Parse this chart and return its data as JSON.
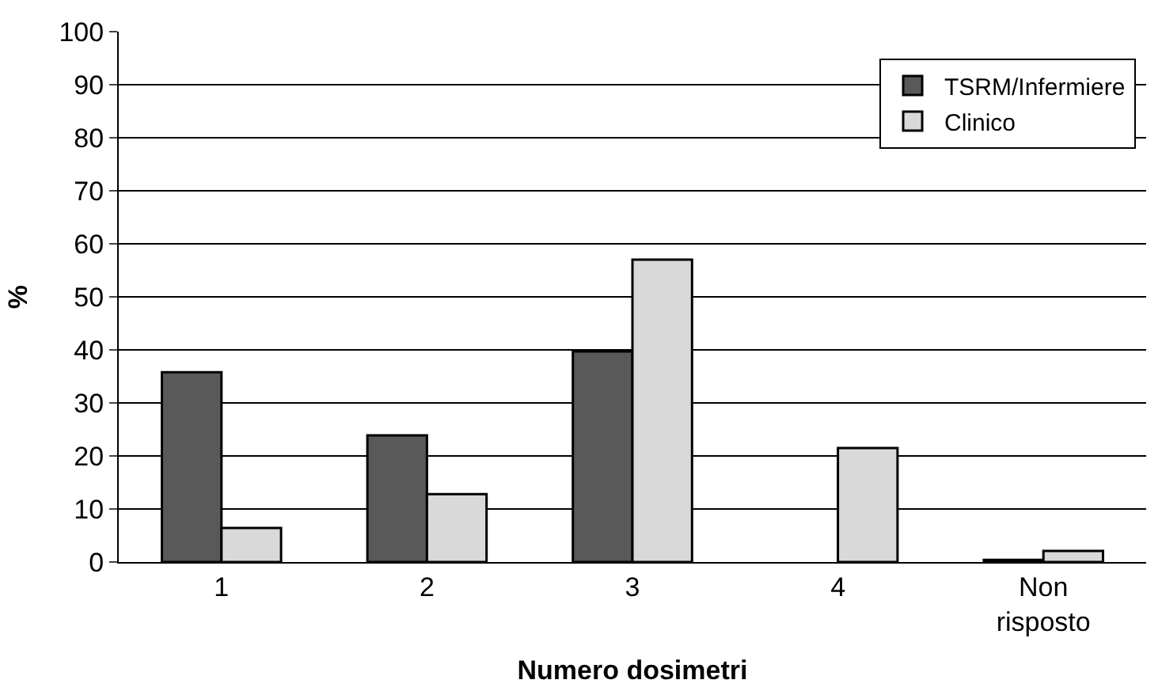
{
  "chart_data": {
    "type": "bar",
    "xlabel": "Numero dosimetri",
    "ylabel": "%",
    "categories": [
      "1",
      "2",
      "3",
      "4",
      "Non\nrisposto"
    ],
    "series": [
      {
        "name": "TSRM/Infermiere",
        "color": "#595959",
        "values": [
          35.8,
          23.9,
          39.7,
          null,
          0.4
        ]
      },
      {
        "name": "Clinico",
        "color": "#d9d9d9",
        "values": [
          6.4,
          12.8,
          57.0,
          21.5,
          2.1
        ]
      }
    ],
    "ylim": [
      0,
      100
    ],
    "yticks": [
      0,
      10,
      20,
      30,
      40,
      50,
      60,
      70,
      80,
      90,
      100
    ],
    "grid": "y",
    "legend": "top right"
  }
}
